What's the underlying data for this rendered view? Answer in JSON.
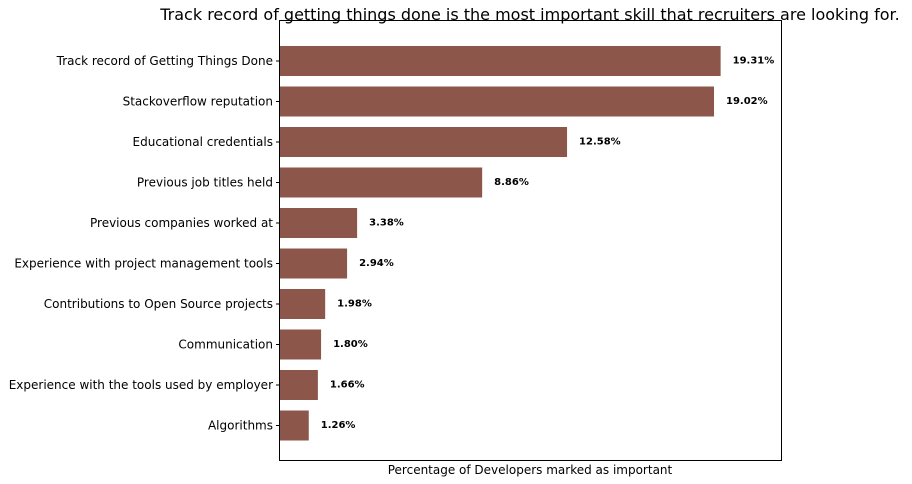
{
  "chart_data": {
    "type": "bar",
    "orientation": "horizontal",
    "title": "Track record of getting things done is the most important skill that recruiters are looking for.",
    "xlabel": "Percentage of Developers marked as important",
    "ylabel": "",
    "categories": [
      "Track record of Getting Things Done",
      "Stackoverflow reputation",
      "Educational credentials",
      "Previous job titles held",
      "Previous companies worked at",
      "Experience with project management tools",
      "Contributions to Open Source projects",
      "Communication",
      "Experience with the tools used by employer",
      "Algorithms"
    ],
    "values": [
      19.31,
      19.02,
      12.58,
      8.86,
      3.38,
      2.94,
      1.98,
      1.8,
      1.66,
      1.26
    ],
    "value_labels": [
      "19.31%",
      "19.02%",
      "12.58%",
      "8.86%",
      "3.38%",
      "2.94%",
      "1.98%",
      "1.80%",
      "1.66%",
      "1.26%"
    ],
    "xlim": [
      0,
      22
    ],
    "xticks_visible": false,
    "grid": false,
    "legend": "none",
    "bar_color": "#8c564b"
  }
}
